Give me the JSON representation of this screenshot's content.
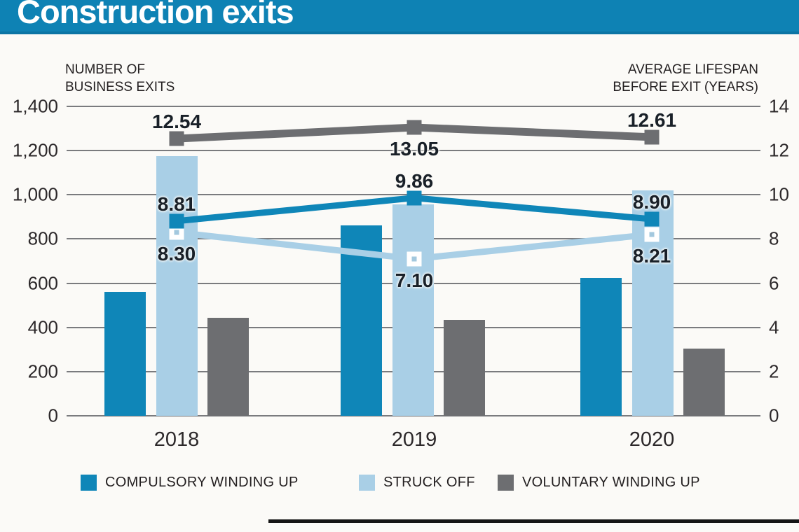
{
  "header": {
    "title": "Construction exits",
    "bg_color": "#0e82b4",
    "text_color": "#ffffff"
  },
  "chart_data": {
    "type": "bar",
    "subtype": "combo-bar-line-dual-axis",
    "categories": [
      "2018",
      "2019",
      "2020"
    ],
    "left_axis": {
      "label_lines": [
        "NUMBER OF",
        "BUSINESS EXITS"
      ],
      "ticks": [
        "1,400",
        "1,200",
        "1,000",
        "800",
        "600",
        "400",
        "200",
        "0"
      ],
      "min": 0,
      "max": 1400,
      "grid": true
    },
    "right_axis": {
      "label_lines": [
        "AVERAGE LIFESPAN",
        "BEFORE EXIT (YEARS)"
      ],
      "ticks": [
        "14",
        "12",
        "10",
        "8",
        "6",
        "4",
        "2",
        "0"
      ],
      "min": 0,
      "max": 14
    },
    "bar_series": [
      {
        "name": "COMPULSORY WINDING UP",
        "color": "#0f86b8",
        "values": [
          560,
          860,
          625
        ]
      },
      {
        "name": "STRUCK OFF",
        "color": "#a9cfe6",
        "values": [
          1175,
          955,
          1020
        ]
      },
      {
        "name": "VOLUNTARY WINDING UP",
        "color": "#6d6e71",
        "values": [
          445,
          435,
          305
        ]
      }
    ],
    "line_series": [
      {
        "name": "STRUCK OFF AVERAGE LIFESPAN",
        "color": "#a9cfe6",
        "values": [
          8.3,
          7.1,
          8.21
        ],
        "labels": [
          "8.30",
          "7.10",
          "8.21"
        ],
        "label_sides": [
          "below",
          "below",
          "below"
        ],
        "marker": "white",
        "marker_dot_color": "#a3c8de"
      },
      {
        "name": "COMPULSORY WINDING UP AVERAGE LIFESPAN",
        "color": "#0f86b8",
        "values": [
          8.81,
          9.86,
          8.9
        ],
        "labels": [
          "8.81",
          "9.86",
          "8.90"
        ],
        "label_sides": [
          "above",
          "above",
          "above"
        ],
        "marker": "solid"
      },
      {
        "name": "VOLUNTARY WINDING UP AVERAGE LIFESPAN",
        "color": "#6d6e71",
        "values": [
          12.54,
          13.05,
          12.61
        ],
        "labels": [
          "12.54",
          "13.05",
          "12.61"
        ],
        "label_sides": [
          "above",
          "below",
          "above"
        ],
        "marker": "solid"
      }
    ],
    "legend": [
      {
        "label": "COMPULSORY WINDING UP",
        "color": "#0f86b8"
      },
      {
        "label": "STRUCK OFF",
        "color": "#a9cfe6"
      },
      {
        "label": "VOLUNTARY WINDING UP",
        "color": "#6d6e71"
      }
    ],
    "gridline_color": "#7a7b7e"
  }
}
